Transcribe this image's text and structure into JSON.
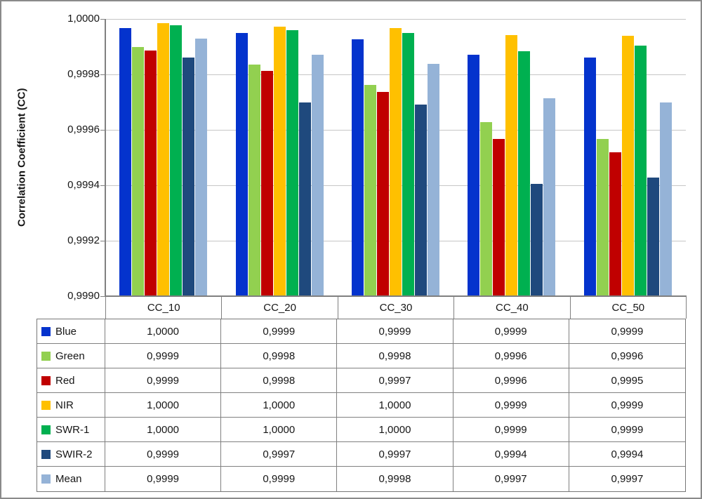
{
  "chart_data": {
    "type": "bar",
    "title": "",
    "ylabel": "Correlation Coefficient (CC)",
    "xlabel": "",
    "grid": true,
    "legend_position": "data-table-left",
    "categories": [
      "CC_10",
      "CC_20",
      "CC_30",
      "CC_40",
      "CC_50"
    ],
    "y_axis": {
      "min": 0.999,
      "max": 1.0,
      "tick_step": 0.0002,
      "decimal_separator": ",",
      "tick_labels": [
        "1,0000",
        "0,9998",
        "0,9996",
        "0,9994",
        "0,9992",
        "0,9990"
      ]
    },
    "series": [
      {
        "name": "Blue",
        "color": "#0433cd",
        "values": [
          0.999968,
          0.999949,
          0.999927,
          0.999871,
          0.999862
        ],
        "table_values": [
          "1,0000",
          "0,9999",
          "0,9999",
          "0,9999",
          "0,9999"
        ]
      },
      {
        "name": "Green",
        "color": "#92d050",
        "values": [
          0.9999,
          0.999836,
          0.999762,
          0.999627,
          0.999568
        ],
        "table_values": [
          "0,9999",
          "0,9998",
          "0,9998",
          "0,9996",
          "0,9996"
        ]
      },
      {
        "name": "Red",
        "color": "#c00000",
        "values": [
          0.999887,
          0.999813,
          0.999737,
          0.999566,
          0.999519
        ],
        "table_values": [
          "0,9999",
          "0,9998",
          "0,9997",
          "0,9996",
          "0,9995"
        ]
      },
      {
        "name": "NIR",
        "color": "#ffc000",
        "values": [
          0.999985,
          0.999972,
          0.999968,
          0.999941,
          0.999938
        ],
        "table_values": [
          "1,0000",
          "1,0000",
          "1,0000",
          "0,9999",
          "0,9999"
        ]
      },
      {
        "name": "SWR-1",
        "color": "#00b050",
        "values": [
          0.999976,
          0.99996,
          0.99995,
          0.999884,
          0.999904
        ],
        "table_values": [
          "1,0000",
          "1,0000",
          "1,0000",
          "0,9999",
          "0,9999"
        ]
      },
      {
        "name": "SWIR-2",
        "color": "#1f497d",
        "values": [
          0.999862,
          0.9997,
          0.999692,
          0.999404,
          0.999427
        ],
        "table_values": [
          "0,9999",
          "0,9997",
          "0,9997",
          "0,9994",
          "0,9994"
        ]
      },
      {
        "name": "Mean",
        "color": "#95b3d7",
        "values": [
          0.99993,
          0.99987,
          0.999838,
          0.999713,
          0.9997
        ],
        "table_values": [
          "0,9999",
          "0,9999",
          "0,9998",
          "0,9997",
          "0,9997"
        ]
      }
    ]
  }
}
